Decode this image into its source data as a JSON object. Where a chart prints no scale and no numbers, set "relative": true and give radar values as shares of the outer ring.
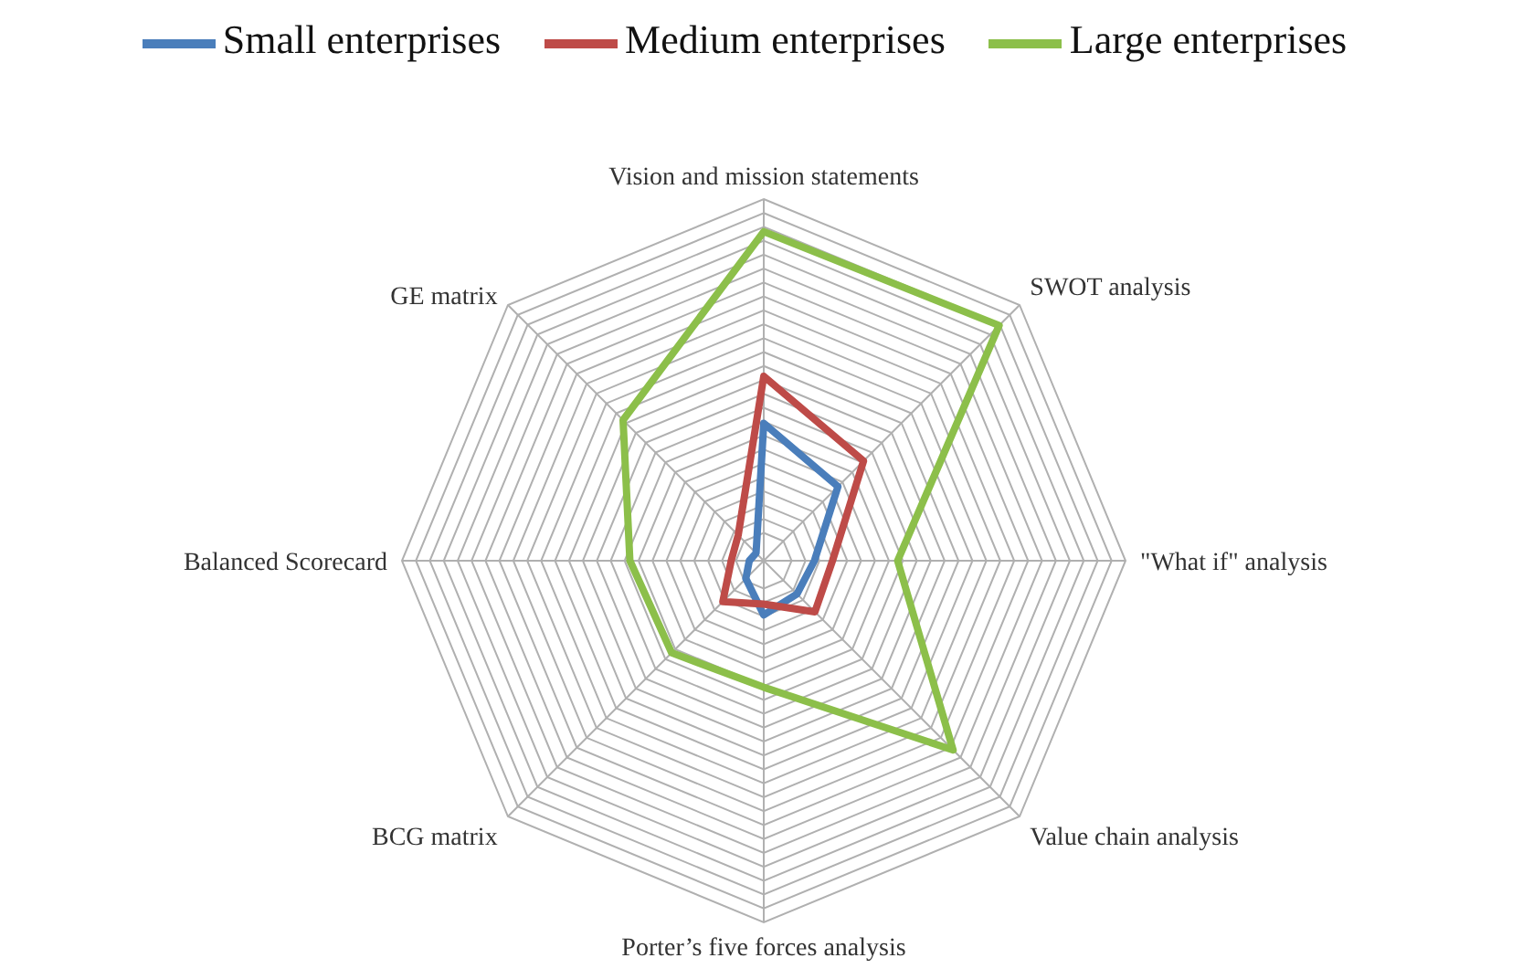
{
  "chart_data": {
    "type": "radar",
    "relative": true,
    "grid": true,
    "legend": "top",
    "line_style": "solid",
    "marker": "none",
    "categories": [
      "Vision and mission statements",
      "SWOT analysis",
      "\"What if\" analysis",
      "Value chain analysis",
      "Porter’s five forces analysis",
      "BCG matrix",
      "Balanced Scorecard",
      "GE matrix"
    ],
    "series": [
      {
        "name": "Small enterprises",
        "color": "#4a7ebb",
        "values": [
          0.38,
          0.29,
          0.14,
          0.13,
          0.15,
          0.07,
          0.04,
          0.03
        ]
      },
      {
        "name": "Medium enterprises",
        "color": "#be4b48",
        "values": [
          0.51,
          0.39,
          0.19,
          0.2,
          0.12,
          0.16,
          0.09,
          0.1
        ]
      },
      {
        "name": "Large enterprises",
        "color": "#8cbf4a",
        "values": [
          0.91,
          0.92,
          0.37,
          0.74,
          0.35,
          0.36,
          0.37,
          0.55
        ]
      }
    ]
  }
}
